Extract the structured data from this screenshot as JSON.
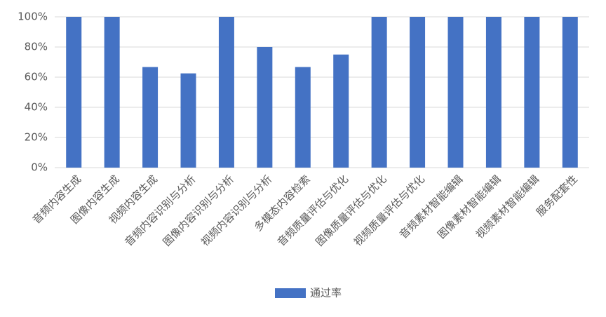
{
  "chart_data": {
    "type": "bar",
    "categories": [
      "音频内容生成",
      "图像内容生成",
      "视频内容生成",
      "音频内容识别与分析",
      "图像内容识别与分析",
      "视频内容识别与分析",
      "多模态内容检索",
      "音频质量评估与优化",
      "图像质量评估与优化",
      "视频质量评估与优化",
      "音频素材智能编辑",
      "图像素材智能编辑",
      "视频素材智能编辑",
      "服务配套性"
    ],
    "series": [
      {
        "name": "通过率",
        "color": "#4472c4",
        "values": [
          100,
          100,
          66.7,
          62.5,
          100,
          80,
          66.7,
          75,
          100,
          100,
          100,
          100,
          100,
          100
        ]
      }
    ],
    "ylim": [
      0,
      100
    ],
    "yticks": [
      {
        "value": 0,
        "label": "0%"
      },
      {
        "value": 20,
        "label": "20%"
      },
      {
        "value": 40,
        "label": "40%"
      },
      {
        "value": 60,
        "label": "60%"
      },
      {
        "value": 80,
        "label": "80%"
      },
      {
        "value": 100,
        "label": "100%"
      }
    ],
    "grid": true,
    "legend": "bottom"
  }
}
